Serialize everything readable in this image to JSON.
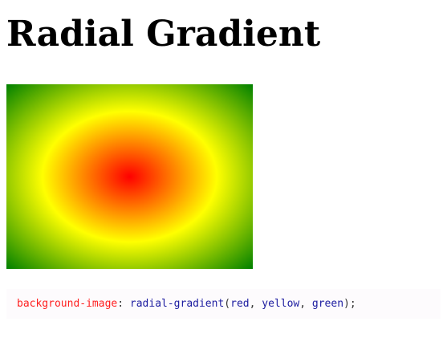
{
  "heading": "Radial Gradient",
  "demo": {
    "gradient_colors": [
      "red",
      "yellow",
      "green"
    ]
  },
  "code": {
    "property": "background-image",
    "colon": ":",
    "function": "radial-gradient",
    "open_paren": "(",
    "arg1": "red",
    "comma1": ",",
    "arg2": "yellow",
    "comma2": ",",
    "arg3": "green",
    "close_paren_semi": ");"
  },
  "colors": {
    "property": "#ff1f1f",
    "value": "#1c1ca0",
    "punctuation": "#333333",
    "code_background": "#fdfbfd"
  }
}
